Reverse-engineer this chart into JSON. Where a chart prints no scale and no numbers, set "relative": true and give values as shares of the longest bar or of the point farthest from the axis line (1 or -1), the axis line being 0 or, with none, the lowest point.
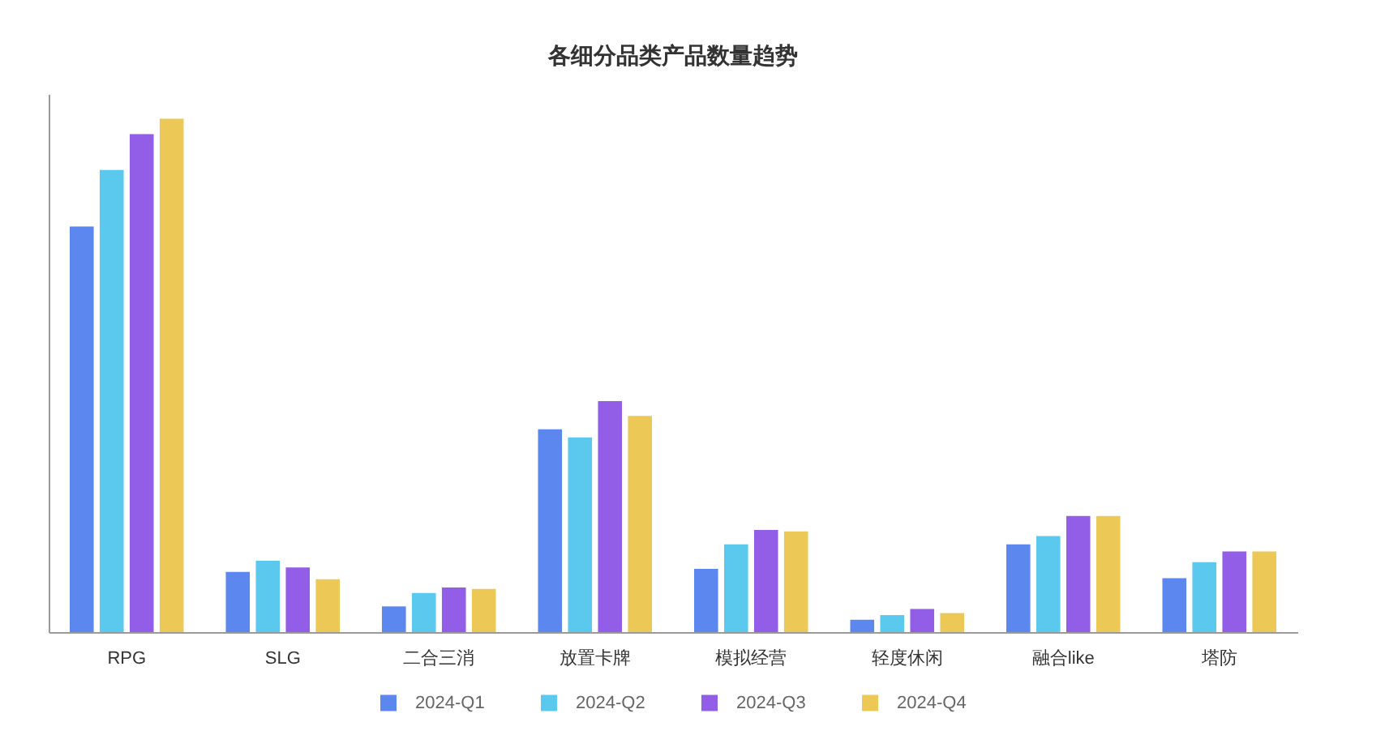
{
  "chart_data": {
    "type": "bar",
    "title": "各细分品类产品数量趋势",
    "relative": true,
    "legend": "bottom",
    "categories": [
      "RPG",
      "SLG",
      "二合三消",
      "放置卡牌",
      "模拟经营",
      "轻度休闲",
      "融合like",
      "塔防"
    ],
    "series": [
      {
        "name": "2024-Q1",
        "color": "#5b87ee",
        "values": [
          0.79,
          0.117,
          0.05,
          0.395,
          0.123,
          0.024,
          0.171,
          0.105
        ]
      },
      {
        "name": "2024-Q2",
        "color": "#5bc8ee",
        "values": [
          0.9,
          0.139,
          0.076,
          0.379,
          0.171,
          0.033,
          0.187,
          0.136
        ]
      },
      {
        "name": "2024-Q3",
        "color": "#925ee8",
        "values": [
          0.97,
          0.126,
          0.087,
          0.45,
          0.199,
          0.045,
          0.226,
          0.157
        ]
      },
      {
        "name": "2024-Q4",
        "color": "#ecc957",
        "values": [
          1,
          0.103,
          0.084,
          0.421,
          0.196,
          0.037,
          0.226,
          0.157
        ]
      }
    ]
  }
}
